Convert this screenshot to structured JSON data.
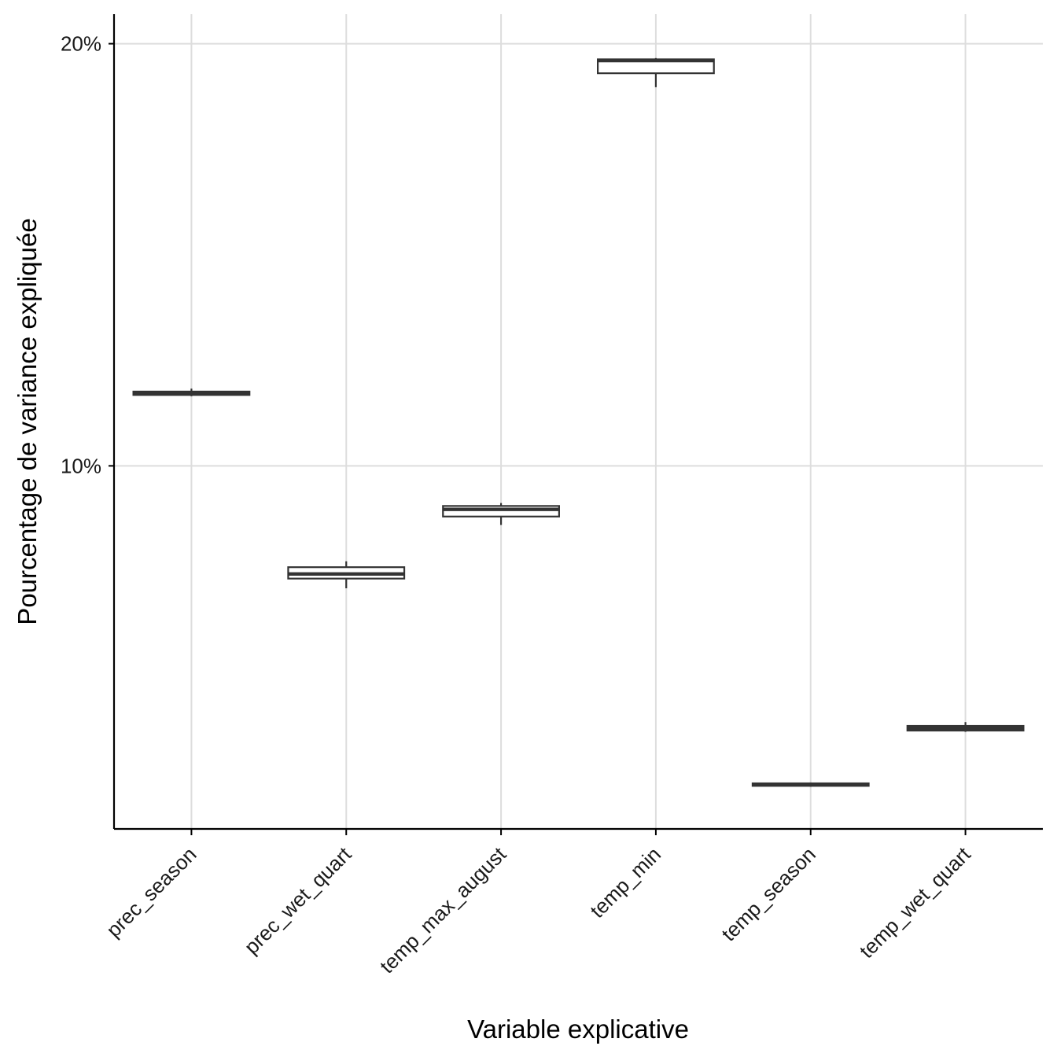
{
  "chart_data": {
    "type": "boxplot",
    "xlabel": "Variable explicative",
    "ylabel": "Pourcentage de variance expliquée",
    "categories": [
      "prec_season",
      "prec_wet_quart",
      "temp_max_august",
      "temp_min",
      "temp_season",
      "temp_wet_quart"
    ],
    "yticks": [
      10,
      20
    ],
    "ytick_labels": [
      "10%",
      "20%"
    ],
    "ylim": [
      1.4,
      20.7
    ],
    "grid": true,
    "legend": "none",
    "boxes": [
      {
        "category": "prec_season",
        "whisker_low": 11.65,
        "q1": 11.68,
        "median": 11.72,
        "q3": 11.76,
        "whisker_high": 11.83
      },
      {
        "category": "prec_wet_quart",
        "whisker_low": 7.1,
        "q1": 7.33,
        "median": 7.44,
        "q3": 7.6,
        "whisker_high": 7.74
      },
      {
        "category": "temp_max_august",
        "whisker_low": 8.6,
        "q1": 8.8,
        "median": 8.97,
        "q3": 9.05,
        "whisker_high": 9.12
      },
      {
        "category": "temp_min",
        "whisker_low": 18.97,
        "q1": 19.3,
        "median": 19.6,
        "q3": 19.63,
        "whisker_high": 19.66
      },
      {
        "category": "temp_season",
        "whisker_low": 2.4,
        "q1": 2.42,
        "median": 2.45,
        "q3": 2.48,
        "whisker_high": 2.5
      },
      {
        "category": "temp_wet_quart",
        "whisker_low": 3.7,
        "q1": 3.73,
        "median": 3.78,
        "q3": 3.84,
        "whisker_high": 3.93
      }
    ],
    "colors": {
      "grid": "#dddddd",
      "axis": "#000000",
      "box_stroke": "#333333",
      "box_fill": "#ffffff"
    }
  }
}
